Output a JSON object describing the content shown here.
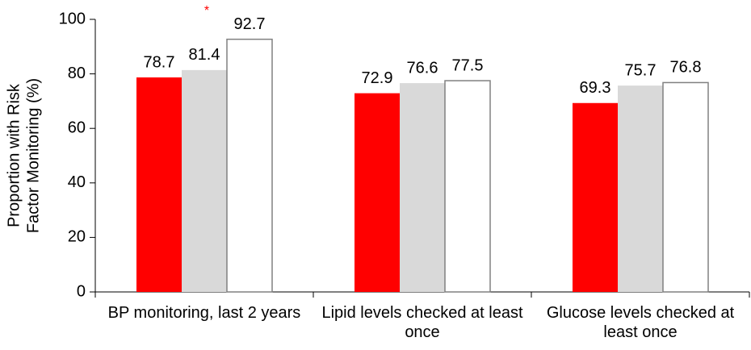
{
  "chart_data": {
    "type": "bar",
    "ylabel": [
      "Proportion with Risk",
      "Factor Monitoring (%)"
    ],
    "categories": [
      "BP monitoring, last 2 years",
      "Lipid levels checked at least once",
      "Glucose levels checked at least once"
    ],
    "series": [
      {
        "color": "#ff0000",
        "values": [
          78.7,
          72.9,
          69.3
        ]
      },
      {
        "color": "#d9d9d9",
        "values": [
          81.4,
          76.6,
          75.7
        ]
      },
      {
        "color": "#ffffff",
        "values": [
          92.7,
          77.5,
          76.8
        ]
      }
    ],
    "ylim": [
      0,
      100
    ],
    "yticks": [
      0,
      20,
      40,
      60,
      80,
      100
    ],
    "annotation": "*",
    "annotation_color": "#ff0000"
  }
}
